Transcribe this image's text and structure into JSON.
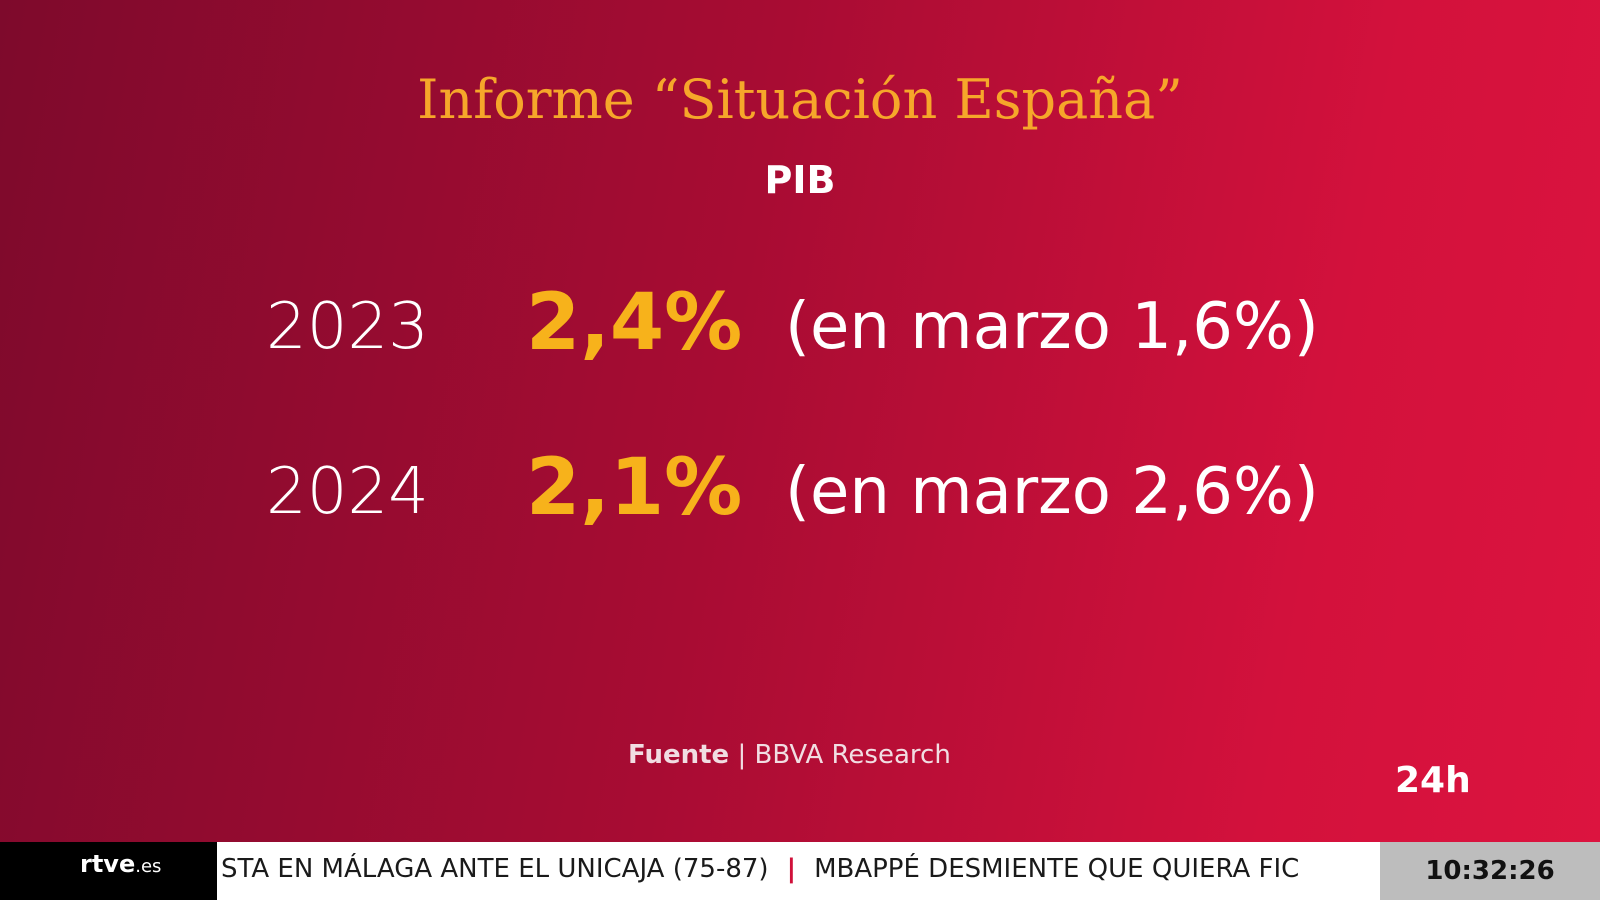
{
  "header": {
    "title": "Informe “Situación España”",
    "subtitle": "PIB"
  },
  "rows": [
    {
      "year": "2023",
      "value": "2,4%",
      "note": "(en marzo 1,6%)"
    },
    {
      "year": "2024",
      "value": "2,1%",
      "note": "(en marzo 2,6%)"
    }
  ],
  "source": {
    "label": "Fuente",
    "separator": "|",
    "text": "BBVA Research"
  },
  "channel": "24h",
  "ticker": {
    "logo": "rtve",
    "logo_suffix": ".es",
    "items": [
      "STA EN MÁLAGA ANTE EL UNICAJA (75-87)",
      "MBAPPÉ DESMIENTE QUE QUIERA FIC"
    ],
    "separator": "|",
    "clock": "10:32:26"
  }
}
